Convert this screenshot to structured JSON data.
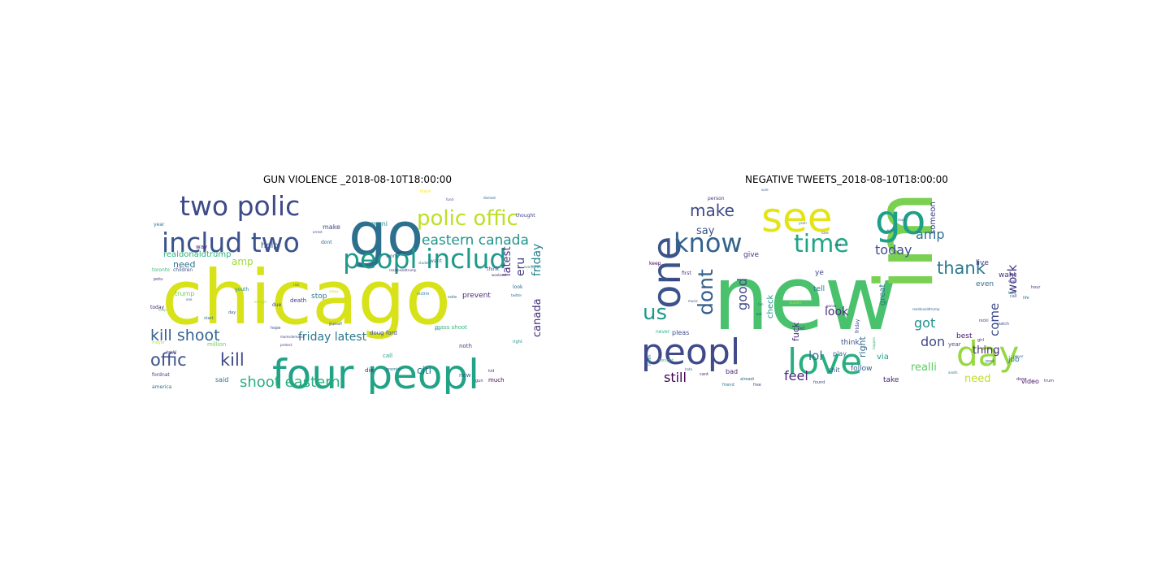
{
  "chart_data": [
    {
      "type": "wordcloud",
      "title": "GUN VIOLENCE _2018-08-10T18:00:00",
      "words": [
        {
          "text": "chicago",
          "weight": 100,
          "color": "#d7e219"
        },
        {
          "text": "go",
          "weight": 72,
          "color": "#2d708e"
        },
        {
          "text": "four peopl",
          "weight": 46,
          "color": "#20a386"
        },
        {
          "text": "peopl includ",
          "weight": 33,
          "color": "#1f9a8a"
        },
        {
          "text": "includ two",
          "weight": 33,
          "color": "#3b528b"
        },
        {
          "text": "two polic",
          "weight": 31,
          "color": "#3e4a89"
        },
        {
          "text": "polic offic",
          "weight": 26,
          "color": "#bddf26"
        },
        {
          "text": "eastern canada",
          "weight": 17,
          "color": "#1f958b"
        },
        {
          "text": "kill shoot",
          "weight": 19,
          "color": "#33638d"
        },
        {
          "text": "offic",
          "weight": 21,
          "color": "#3b528b"
        },
        {
          "text": "kill",
          "weight": 21,
          "color": "#3e4c8a"
        },
        {
          "text": "shoot eastern",
          "weight": 18,
          "color": "#29af7f"
        },
        {
          "text": "friday latest",
          "weight": 14,
          "color": "#2a788e"
        },
        {
          "text": "latest",
          "weight": 13,
          "color": "#46327e"
        },
        {
          "text": "eru",
          "weight": 14,
          "color": "#443983"
        },
        {
          "text": "friday",
          "weight": 14,
          "color": "#26828e"
        },
        {
          "text": "canada",
          "weight": 13,
          "color": "#472d7b"
        },
        {
          "text": "citi",
          "weight": 12,
          "color": "#2e6e8e"
        },
        {
          "text": "amp",
          "weight": 12,
          "color": "#9fda3a"
        },
        {
          "text": "need",
          "weight": 11,
          "color": "#2c718e"
        },
        {
          "text": "realdonaldtrump",
          "weight": 10,
          "color": "#2db27d"
        },
        {
          "text": "help",
          "weight": 10,
          "color": "#3b528b"
        },
        {
          "text": "stop",
          "weight": 9,
          "color": "#2a788e"
        },
        {
          "text": "prevent",
          "weight": 9,
          "color": "#482878"
        },
        {
          "text": "mani",
          "weight": 8,
          "color": "#25848e"
        },
        {
          "text": "make",
          "weight": 8,
          "color": "#3e4989"
        },
        {
          "text": "trump",
          "weight": 8,
          "color": "#6ece58"
        },
        {
          "text": "said",
          "weight": 8,
          "color": "#2c728e"
        },
        {
          "text": "million",
          "weight": 7,
          "color": "#6ccd5a"
        },
        {
          "text": "doug ford",
          "weight": 7,
          "color": "#3d4e8a"
        },
        {
          "text": "mass shoot",
          "weight": 7,
          "color": "#35b779"
        },
        {
          "text": "noth",
          "weight": 7,
          "color": "#404688"
        },
        {
          "text": "call",
          "weight": 7,
          "color": "#1fa187"
        },
        {
          "text": "new",
          "weight": 7,
          "color": "#355f8d"
        },
        {
          "text": "much",
          "weight": 7,
          "color": "#440154"
        },
        {
          "text": "die",
          "weight": 7,
          "color": "#48186a"
        },
        {
          "text": "death",
          "weight": 7,
          "color": "#453882"
        },
        {
          "text": "children",
          "weight": 6,
          "color": "#3a548c"
        },
        {
          "text": "toronto",
          "weight": 6,
          "color": "#3aba76"
        },
        {
          "text": "today",
          "weight": 6,
          "color": "#481c6e"
        },
        {
          "text": "year",
          "weight": 6,
          "color": "#287c8e"
        },
        {
          "text": "way",
          "weight": 7,
          "color": "#482475"
        },
        {
          "text": "work",
          "weight": 6,
          "color": "#38588c"
        },
        {
          "text": "think",
          "weight": 6,
          "color": "#3f4889"
        },
        {
          "text": "look",
          "weight": 6,
          "color": "#31688e"
        },
        {
          "text": "want",
          "weight": 6,
          "color": "#30698e"
        },
        {
          "text": "dont",
          "weight": 6,
          "color": "#2a768e"
        },
        {
          "text": "thought",
          "weight": 6,
          "color": "#404588"
        },
        {
          "text": "fordnat",
          "weight": 6,
          "color": "#433e85"
        },
        {
          "text": "america",
          "weight": 6,
          "color": "#2d718e"
        },
        {
          "text": "due",
          "weight": 6,
          "color": "#414287"
        },
        {
          "text": "youth",
          "weight": 6,
          "color": "#24868e"
        },
        {
          "text": "potu",
          "weight": 5,
          "color": "#46307e"
        },
        {
          "text": "mayor",
          "weight": 5,
          "color": "#b5de2b"
        },
        {
          "text": "tackl",
          "weight": 5,
          "color": "#482677"
        },
        {
          "text": "day",
          "weight": 5,
          "color": "#39558c"
        },
        {
          "text": "start",
          "weight": 5,
          "color": "#2f6b8e"
        },
        {
          "text": "hope",
          "weight": 5,
          "color": "#3c4f8a"
        },
        {
          "text": "premier",
          "weight": 5,
          "color": "#2b748e"
        },
        {
          "text": "right",
          "weight": 5,
          "color": "#20928c"
        },
        {
          "text": "kid",
          "weight": 5,
          "color": "#3d4d8a"
        },
        {
          "text": "gun",
          "weight": 5,
          "color": "#472c7a"
        },
        {
          "text": "vote",
          "weight": 5,
          "color": "#2e6f8e"
        },
        {
          "text": "victim",
          "weight": 5,
          "color": "#26818e"
        },
        {
          "text": "black",
          "weight": 5,
          "color": "#fde725"
        },
        {
          "text": "realdonaldtrump",
          "weight": 4,
          "color": "#472f7d"
        },
        {
          "text": "momsdemand",
          "weight": 4,
          "color": "#404588"
        },
        {
          "text": "jjkplouff",
          "weight": 4,
          "color": "#3f4788"
        },
        {
          "text": "enough",
          "weight": 4,
          "color": "#a8db34"
        },
        {
          "text": "keep",
          "weight": 4,
          "color": "#5ec962"
        },
        {
          "text": "one",
          "weight": 4,
          "color": "#365d8d"
        },
        {
          "text": "gang",
          "weight": 4,
          "color": "#482071"
        },
        {
          "text": "alway",
          "weight": 4,
          "color": "#d0e11c"
        },
        {
          "text": "twitter",
          "weight": 4,
          "color": "#31688e"
        },
        {
          "text": "everytown",
          "weight": 4,
          "color": "#2a788e"
        },
        {
          "text": "weekend",
          "weight": 4,
          "color": "#481a6c"
        },
        {
          "text": "fund",
          "weight": 4,
          "color": "#3c4f8a"
        },
        {
          "text": "domest",
          "weight": 4,
          "color": "#33638d"
        },
        {
          "text": "arrest",
          "weight": 4,
          "color": "#3e4c8a"
        },
        {
          "text": "protect",
          "weight": 4,
          "color": "#443a83"
        },
        {
          "text": "student",
          "weight": 4,
          "color": "#2b758e"
        },
        {
          "text": "guy",
          "weight": 4,
          "color": "#25848e"
        },
        {
          "text": "rick",
          "weight": 4,
          "color": "#2c718e"
        },
        {
          "text": "point",
          "weight": 4,
          "color": "#39568c"
        }
      ]
    },
    {
      "type": "wordcloud",
      "title": "NEGATIVE TWEETS_2018-08-10T18:00:00",
      "words": [
        {
          "text": "new",
          "weight": 100,
          "color": "#4ac16d"
        },
        {
          "text": "im",
          "weight": 80,
          "color": "#7ad151"
        },
        {
          "text": "go",
          "weight": 52,
          "color": "#1f9e89"
        },
        {
          "text": "see",
          "weight": 50,
          "color": "#e2e418"
        },
        {
          "text": "one",
          "weight": 48,
          "color": "#3b528b"
        },
        {
          "text": "peopl",
          "weight": 44,
          "color": "#3e4a89"
        },
        {
          "text": "love",
          "weight": 44,
          "color": "#29af7f"
        },
        {
          "text": "day",
          "weight": 42,
          "color": "#95d840"
        },
        {
          "text": "know",
          "weight": 32,
          "color": "#33638d"
        },
        {
          "text": "time",
          "weight": 30,
          "color": "#20a486"
        },
        {
          "text": "us",
          "weight": 26,
          "color": "#1f9a8a"
        },
        {
          "text": "dont",
          "weight": 25,
          "color": "#34608d"
        },
        {
          "text": "make",
          "weight": 20,
          "color": "#3e4a89"
        },
        {
          "text": "thank",
          "weight": 21,
          "color": "#2a788e"
        },
        {
          "text": "today",
          "weight": 16,
          "color": "#3e4c8a"
        },
        {
          "text": "amp",
          "weight": 16,
          "color": "#2c718e"
        },
        {
          "text": "good",
          "weight": 16,
          "color": "#3f4889"
        },
        {
          "text": "got",
          "weight": 16,
          "color": "#20928c"
        },
        {
          "text": "don",
          "weight": 16,
          "color": "#404688"
        },
        {
          "text": "come",
          "weight": 15,
          "color": "#3e4c8a"
        },
        {
          "text": "work",
          "weight": 15,
          "color": "#453882"
        },
        {
          "text": "still",
          "weight": 16,
          "color": "#440154"
        },
        {
          "text": "feel",
          "weight": 16,
          "color": "#482878"
        },
        {
          "text": "lol",
          "weight": 15,
          "color": "#2e6e8e"
        },
        {
          "text": "look",
          "weight": 14,
          "color": "#46307e"
        },
        {
          "text": "thing",
          "weight": 13,
          "color": "#482475"
        },
        {
          "text": "need",
          "weight": 13,
          "color": "#bddf26"
        },
        {
          "text": "realli",
          "weight": 13,
          "color": "#5ec962"
        },
        {
          "text": "say",
          "weight": 13,
          "color": "#3b528b"
        },
        {
          "text": "right",
          "weight": 11,
          "color": "#31688e"
        },
        {
          "text": "fuck",
          "weight": 11,
          "color": "#472d7b"
        },
        {
          "text": "check",
          "weight": 10,
          "color": "#1f958b"
        },
        {
          "text": "great",
          "weight": 10,
          "color": "#2a788e"
        },
        {
          "text": "someon",
          "weight": 10,
          "color": "#414487"
        },
        {
          "text": "via",
          "weight": 10,
          "color": "#1fa187"
        },
        {
          "text": "think",
          "weight": 9,
          "color": "#3b528b"
        },
        {
          "text": "tell",
          "weight": 9,
          "color": "#29798e"
        },
        {
          "text": "give",
          "weight": 9,
          "color": "#453882"
        },
        {
          "text": "even",
          "weight": 9,
          "color": "#2e6e8e"
        },
        {
          "text": "want",
          "weight": 9,
          "color": "#472f7d"
        },
        {
          "text": "live",
          "weight": 9,
          "color": "#443983"
        },
        {
          "text": "best",
          "weight": 9,
          "color": "#481668"
        },
        {
          "text": "job",
          "weight": 9,
          "color": "#2c718e"
        },
        {
          "text": "video",
          "weight": 8,
          "color": "#471365"
        },
        {
          "text": "take",
          "weight": 9,
          "color": "#482071"
        },
        {
          "text": "follow",
          "weight": 9,
          "color": "#365c8d"
        },
        {
          "text": "bad",
          "weight": 8,
          "color": "#482677"
        },
        {
          "text": "pleas",
          "weight": 8,
          "color": "#3d4e8a"
        },
        {
          "text": "shit",
          "weight": 8,
          "color": "#355f8d"
        },
        {
          "text": "play",
          "weight": 8,
          "color": "#2d708e"
        },
        {
          "text": "year",
          "weight": 7,
          "color": "#3e4989"
        },
        {
          "text": "keep",
          "weight": 6,
          "color": "#440154"
        },
        {
          "text": "first",
          "weight": 6,
          "color": "#46337f"
        },
        {
          "text": "never",
          "weight": 6,
          "color": "#2db27d"
        },
        {
          "text": "let",
          "weight": 6,
          "color": "#3d4d8a"
        },
        {
          "text": "ye",
          "weight": 9,
          "color": "#3f4788"
        },
        {
          "text": "person",
          "weight": 6,
          "color": "#433d84"
        },
        {
          "text": "queen",
          "weight": 5,
          "color": "#a8db34"
        },
        {
          "text": "friday",
          "weight": 6,
          "color": "#404588"
        },
        {
          "text": "listen",
          "weight": 5,
          "color": "#26828e"
        },
        {
          "text": "tonight",
          "weight": 5,
          "color": "#3aba76"
        },
        {
          "text": "nicki",
          "weight": 5,
          "color": "#46327e"
        },
        {
          "text": "watch",
          "weight": 5,
          "color": "#3b528b"
        },
        {
          "text": "girl",
          "weight": 5,
          "color": "#472a7a"
        },
        {
          "text": "realdonaldtrump",
          "weight": 4,
          "color": "#30698e"
        },
        {
          "text": "cant",
          "weight": 5,
          "color": "#482878"
        },
        {
          "text": "alreadi",
          "weight": 5,
          "color": "#31688e"
        },
        {
          "text": "friend",
          "weight": 5,
          "color": "#2a788e"
        },
        {
          "text": "free",
          "weight": 5,
          "color": "#3e4c8a"
        },
        {
          "text": "found",
          "weight": 5,
          "color": "#404588"
        },
        {
          "text": "trump",
          "weight": 5,
          "color": "#414287"
        },
        {
          "text": "done",
          "weight": 5,
          "color": "#481c6e"
        },
        {
          "text": "post",
          "weight": 5,
          "color": "#2f6b8e"
        },
        {
          "text": "call",
          "weight": 5,
          "color": "#3a548c"
        },
        {
          "text": "hour",
          "weight": 5,
          "color": "#472c7a"
        },
        {
          "text": "wait",
          "weight": 5,
          "color": "#3e4a89"
        },
        {
          "text": "told",
          "weight": 5,
          "color": "#25848e"
        },
        {
          "text": "life",
          "weight": 5,
          "color": "#2b748e"
        },
        {
          "text": "music",
          "weight": 4,
          "color": "#3d4e8a"
        },
        {
          "text": "made",
          "weight": 4,
          "color": "#482475"
        },
        {
          "text": "yeah",
          "weight": 4,
          "color": "#287c8e"
        },
        {
          "text": "said",
          "weight": 4,
          "color": "#453781"
        },
        {
          "text": "read",
          "weight": 4,
          "color": "#39568c"
        },
        {
          "text": "wont",
          "weight": 4,
          "color": "#2e6f8e"
        },
        {
          "text": "care",
          "weight": 4,
          "color": "#404688"
        },
        {
          "text": "fun",
          "weight": 4,
          "color": "#2c718e"
        },
        {
          "text": "ask",
          "weight": 4,
          "color": "#3f4889"
        },
        {
          "text": "hate",
          "weight": 4,
          "color": "#33638d"
        },
        {
          "text": "anoth",
          "weight": 4,
          "color": "#2a768e"
        },
        {
          "text": "happen",
          "weight": 4,
          "color": "#35b779"
        },
        {
          "text": "player",
          "weight": 4,
          "color": "#365d8d"
        },
        {
          "text": "gonna",
          "weight": 4,
          "color": "#472f7d"
        },
        {
          "text": "sure",
          "weight": 4,
          "color": "#38588c"
        }
      ]
    }
  ]
}
